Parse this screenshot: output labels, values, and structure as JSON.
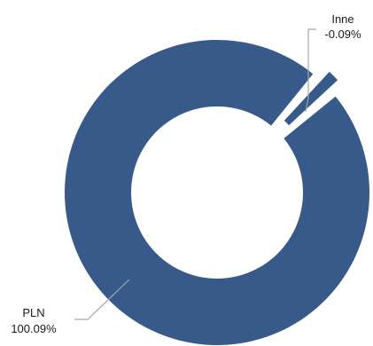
{
  "chart_data": {
    "type": "pie",
    "variant": "donut",
    "title": "",
    "legend": "none",
    "slices": [
      {
        "name": "PLN",
        "value_label": "100.09%",
        "value": 100.09,
        "color": "#375a8a"
      },
      {
        "name": "Inne",
        "value_label": "-0.09%",
        "value": -0.09,
        "color": "#375a8a"
      }
    ]
  },
  "colors": {
    "slice": "#375a8a",
    "leader_line": "#a6a6a6",
    "label_text": "#1a1a1a",
    "background": "#ffffff"
  }
}
